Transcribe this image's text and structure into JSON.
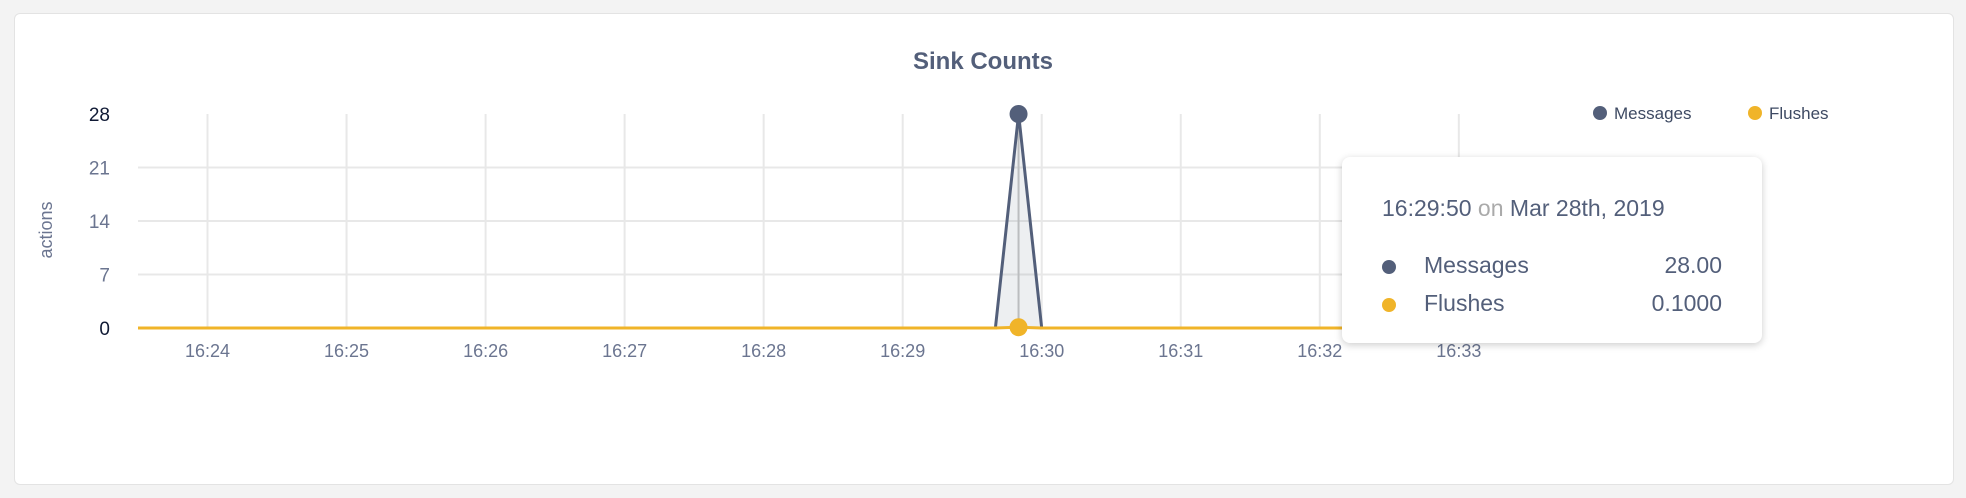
{
  "chart_data": {
    "type": "area",
    "title": "Sink Counts",
    "ylabel": "actions",
    "xlabel": "",
    "ylim": [
      0,
      28
    ],
    "yticks": [
      "0",
      "7",
      "14",
      "21",
      "28"
    ],
    "xticks": [
      "16:24",
      "16:25",
      "16:26",
      "16:27",
      "16:28",
      "16:29",
      "16:30",
      "16:31",
      "16:32",
      "16:33"
    ],
    "xlim": [
      "16:23:30",
      "16:33:10"
    ],
    "grid": true,
    "legend_position": "top-right",
    "x": [
      "16:29:30",
      "16:29:40",
      "16:29:50",
      "16:30:00",
      "16:30:10"
    ],
    "series": [
      {
        "name": "Messages",
        "color": "#535f7a",
        "values": [
          0,
          0,
          28,
          0,
          0
        ]
      },
      {
        "name": "Flushes",
        "color": "#f0b429",
        "values": [
          0,
          0,
          0.1,
          0,
          0
        ]
      }
    ],
    "baseline_all_other_times": 0
  },
  "tooltip": {
    "time": "16:29:50",
    "on": "on",
    "date": "Mar 28th, 2019",
    "rows": [
      {
        "label": "Messages",
        "value": "28.00",
        "color": "#535f7a"
      },
      {
        "label": "Flushes",
        "value": "0.1000",
        "color": "#f0b429"
      }
    ]
  }
}
